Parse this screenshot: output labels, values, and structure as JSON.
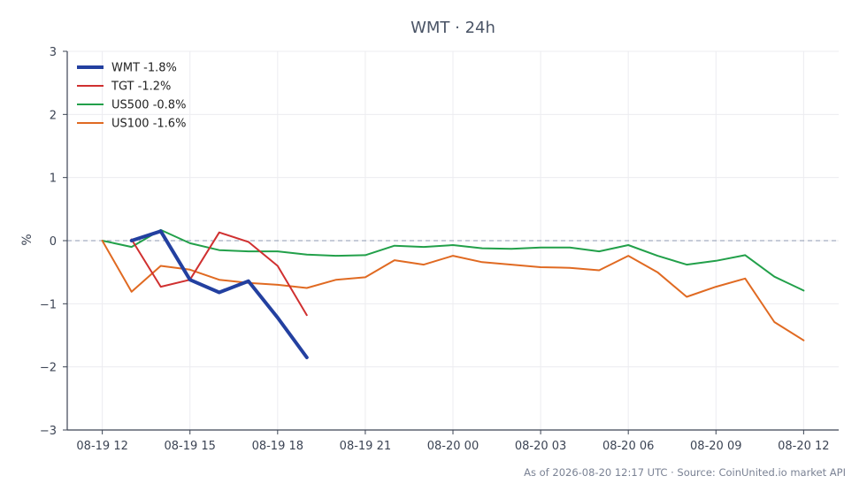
{
  "chart_data": {
    "type": "line",
    "title": "WMT · 24h",
    "ylabel": "%",
    "xlabel": "",
    "ylim": [
      -3,
      3
    ],
    "y_ticks": [
      3,
      2,
      1,
      0,
      -1,
      -2,
      -3
    ],
    "y_tick_labels": [
      "3",
      "2",
      "1",
      "0",
      "−1",
      "−2",
      "−3"
    ],
    "x_ticks": [
      {
        "hour": 0,
        "label": "08-19 12"
      },
      {
        "hour": 3,
        "label": "08-19 15"
      },
      {
        "hour": 6,
        "label": "08-19 18"
      },
      {
        "hour": 9,
        "label": "08-19 21"
      },
      {
        "hour": 12,
        "label": "08-20 00"
      },
      {
        "hour": 15,
        "label": "08-20 03"
      },
      {
        "hour": 18,
        "label": "08-20 06"
      },
      {
        "hour": 21,
        "label": "08-20 09"
      },
      {
        "hour": 24,
        "label": "08-20 12"
      }
    ],
    "xlim_hours": [
      -1.2,
      25.2
    ],
    "grid": true,
    "zero_line": true,
    "legend_position": "top-left",
    "series": [
      {
        "name": "WMT -1.8%",
        "color": "#2340a0",
        "width": 4,
        "x": [
          1,
          2,
          3,
          4,
          5,
          6,
          7
        ],
        "y": [
          0.0,
          0.15,
          -0.62,
          -0.82,
          -0.64,
          -1.22,
          -1.85
        ]
      },
      {
        "name": "TGT -1.2%",
        "color": "#d03030",
        "width": 2,
        "x": [
          1,
          2,
          3,
          4,
          5,
          6,
          7
        ],
        "y": [
          0.02,
          -0.73,
          -0.62,
          0.13,
          -0.02,
          -0.4,
          -1.18
        ]
      },
      {
        "name": "US500 -0.8%",
        "color": "#22a04a",
        "width": 2,
        "x": [
          0,
          1,
          2,
          3,
          4,
          5,
          6,
          7,
          8,
          9,
          10,
          11,
          12,
          13,
          14,
          15,
          16,
          17,
          18,
          19,
          20,
          21,
          22,
          23,
          24
        ],
        "y": [
          0.0,
          -0.1,
          0.17,
          -0.04,
          -0.15,
          -0.17,
          -0.17,
          -0.22,
          -0.24,
          -0.23,
          -0.08,
          -0.1,
          -0.07,
          -0.12,
          -0.13,
          -0.11,
          -0.11,
          -0.17,
          -0.07,
          -0.24,
          -0.38,
          -0.32,
          -0.23,
          -0.57,
          -0.79
        ]
      },
      {
        "name": "US100 -1.6%",
        "color": "#e06a22",
        "width": 2,
        "x": [
          0,
          1,
          2,
          3,
          4,
          5,
          6,
          7,
          8,
          9,
          10,
          11,
          12,
          13,
          14,
          15,
          16,
          17,
          18,
          19,
          20,
          21,
          22,
          23,
          24
        ],
        "y": [
          0.0,
          -0.81,
          -0.4,
          -0.46,
          -0.62,
          -0.67,
          -0.7,
          -0.75,
          -0.62,
          -0.58,
          -0.31,
          -0.38,
          -0.24,
          -0.34,
          -0.38,
          -0.42,
          -0.43,
          -0.47,
          -0.24,
          -0.5,
          -0.89,
          -0.73,
          -0.6,
          -1.29,
          -1.58
        ]
      }
    ],
    "footer": "As of 2026-08-20 12:17 UTC · Source: CoinUnited.io market API"
  }
}
